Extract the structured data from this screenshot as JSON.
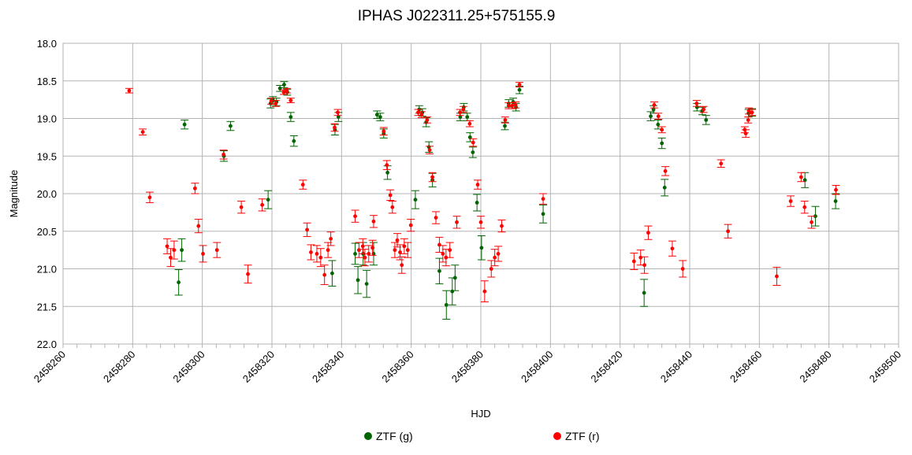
{
  "chart_data": {
    "type": "scatter",
    "title": "IPHAS J022311.25+575155.9",
    "xlabel": "HJD",
    "ylabel": "Magnitude",
    "xlim": [
      2458260,
      2458500
    ],
    "ylim": [
      18.0,
      22.0
    ],
    "y_inverted": true,
    "x_ticks": [
      2458260,
      2458280,
      2458300,
      2458320,
      2458340,
      2458360,
      2458380,
      2458400,
      2458420,
      2458440,
      2458460,
      2458480,
      2458500
    ],
    "y_ticks": [
      "18.0",
      "18.5",
      "19.0",
      "19.5",
      "20.0",
      "20.5",
      "21.0",
      "21.5",
      "22.0"
    ],
    "grid": true,
    "legend_position": "bottom",
    "series": [
      {
        "name": "ZTF (g)",
        "color": "#006400",
        "points": [
          [
            2458293.2,
            21.18,
            0.17
          ],
          [
            2458294.1,
            20.75,
            0.15
          ],
          [
            2458294.9,
            19.08,
            0.06
          ],
          [
            2458306.2,
            19.5,
            0.07
          ],
          [
            2458308.1,
            19.1,
            0.06
          ],
          [
            2458318.9,
            20.08,
            0.12
          ],
          [
            2458319.6,
            18.8,
            0.06
          ],
          [
            2458320.3,
            18.76,
            0.05
          ],
          [
            2458321.3,
            18.78,
            0.05
          ],
          [
            2458322.3,
            18.6,
            0.04
          ],
          [
            2458323.5,
            18.55,
            0.04
          ],
          [
            2458324.4,
            18.65,
            0.04
          ],
          [
            2458325.4,
            18.98,
            0.06
          ],
          [
            2458326.3,
            19.3,
            0.07
          ],
          [
            2458337.3,
            21.06,
            0.17
          ],
          [
            2458338.1,
            19.15,
            0.07
          ],
          [
            2458339.1,
            18.98,
            0.06
          ],
          [
            2458343.9,
            20.8,
            0.14
          ],
          [
            2458344.7,
            21.15,
            0.18
          ],
          [
            2458346.2,
            20.8,
            0.15
          ],
          [
            2458347.2,
            21.2,
            0.18
          ],
          [
            2458349.2,
            20.8,
            0.15
          ],
          [
            2458350.2,
            18.95,
            0.05
          ],
          [
            2458351.1,
            18.98,
            0.05
          ],
          [
            2458352.1,
            19.2,
            0.06
          ],
          [
            2458353.2,
            19.72,
            0.09
          ],
          [
            2458361.2,
            20.08,
            0.12
          ],
          [
            2458362.3,
            18.88,
            0.05
          ],
          [
            2458363.2,
            18.92,
            0.05
          ],
          [
            2458364.3,
            19.05,
            0.06
          ],
          [
            2458365.1,
            19.38,
            0.07
          ],
          [
            2458366.1,
            19.82,
            0.09
          ],
          [
            2458368.1,
            21.03,
            0.17
          ],
          [
            2458370.1,
            21.48,
            0.19
          ],
          [
            2458371.8,
            21.3,
            0.18
          ],
          [
            2458372.6,
            21.12,
            0.17
          ],
          [
            2458374.1,
            18.98,
            0.05
          ],
          [
            2458375.1,
            18.85,
            0.05
          ],
          [
            2458376.1,
            18.98,
            0.05
          ],
          [
            2458376.9,
            19.25,
            0.06
          ],
          [
            2458377.7,
            19.45,
            0.07
          ],
          [
            2458378.9,
            20.12,
            0.11
          ],
          [
            2458380.2,
            20.72,
            0.16
          ],
          [
            2458386.9,
            19.1,
            0.05
          ],
          [
            2458388.0,
            18.8,
            0.05
          ],
          [
            2458389.3,
            18.78,
            0.05
          ],
          [
            2458390.1,
            18.85,
            0.05
          ],
          [
            2458391.1,
            18.62,
            0.05
          ],
          [
            2458397.9,
            20.27,
            0.12
          ],
          [
            2458426.9,
            21.32,
            0.18
          ],
          [
            2458428.8,
            18.97,
            0.06
          ],
          [
            2458429.6,
            18.88,
            0.05
          ],
          [
            2458430.9,
            19.08,
            0.06
          ],
          [
            2458432.0,
            19.33,
            0.07
          ],
          [
            2458432.8,
            19.92,
            0.11
          ],
          [
            2458442.1,
            18.85,
            0.05
          ],
          [
            2458443.6,
            18.9,
            0.05
          ],
          [
            2458444.7,
            19.02,
            0.06
          ],
          [
            2458456.9,
            18.93,
            0.05
          ],
          [
            2458457.9,
            18.92,
            0.05
          ],
          [
            2458473.1,
            19.82,
            0.1
          ],
          [
            2458476.1,
            20.3,
            0.13
          ],
          [
            2458481.9,
            20.1,
            0.1
          ]
        ]
      },
      {
        "name": "ZTF (r)",
        "color": "#ff0000",
        "points": [
          [
            2458279.0,
            18.63,
            0.03
          ],
          [
            2458282.9,
            19.18,
            0.04
          ],
          [
            2458284.9,
            20.05,
            0.07
          ],
          [
            2458289.9,
            20.7,
            0.1
          ],
          [
            2458290.9,
            20.85,
            0.12
          ],
          [
            2458291.9,
            20.75,
            0.12
          ],
          [
            2458297.9,
            19.93,
            0.07
          ],
          [
            2458298.9,
            20.43,
            0.09
          ],
          [
            2458300.2,
            20.8,
            0.11
          ],
          [
            2458304.2,
            20.75,
            0.1
          ],
          [
            2458306.1,
            19.48,
            0.06
          ],
          [
            2458311.2,
            20.18,
            0.08
          ],
          [
            2458313.1,
            21.07,
            0.12
          ],
          [
            2458317.2,
            20.15,
            0.08
          ],
          [
            2458319.8,
            18.77,
            0.04
          ],
          [
            2458321.1,
            18.8,
            0.04
          ],
          [
            2458323.4,
            18.65,
            0.03
          ],
          [
            2458324.3,
            18.63,
            0.03
          ],
          [
            2458325.4,
            18.76,
            0.03
          ],
          [
            2458328.9,
            19.88,
            0.06
          ],
          [
            2458330.1,
            20.48,
            0.09
          ],
          [
            2458331.2,
            20.78,
            0.1
          ],
          [
            2458332.9,
            20.8,
            0.11
          ],
          [
            2458334.0,
            20.85,
            0.12
          ],
          [
            2458335.1,
            21.08,
            0.13
          ],
          [
            2458336.1,
            20.75,
            0.1
          ],
          [
            2458336.9,
            20.6,
            0.09
          ],
          [
            2458338.0,
            19.12,
            0.05
          ],
          [
            2458338.9,
            18.92,
            0.04
          ],
          [
            2458343.9,
            20.3,
            0.08
          ],
          [
            2458345.0,
            20.75,
            0.1
          ],
          [
            2458346.1,
            20.7,
            0.1
          ],
          [
            2458346.7,
            20.85,
            0.11
          ],
          [
            2458347.8,
            20.8,
            0.11
          ],
          [
            2458348.9,
            20.72,
            0.1
          ],
          [
            2458349.2,
            20.37,
            0.08
          ],
          [
            2458352.1,
            19.17,
            0.05
          ],
          [
            2458353.0,
            19.62,
            0.06
          ],
          [
            2458354.0,
            20.02,
            0.07
          ],
          [
            2458354.6,
            20.18,
            0.08
          ],
          [
            2458355.3,
            20.75,
            0.1
          ],
          [
            2458356.0,
            20.62,
            0.09
          ],
          [
            2458356.8,
            20.78,
            0.1
          ],
          [
            2458357.3,
            20.95,
            0.11
          ],
          [
            2458358.0,
            20.7,
            0.1
          ],
          [
            2458359.0,
            20.75,
            0.1
          ],
          [
            2458359.9,
            20.42,
            0.08
          ],
          [
            2458362.0,
            18.92,
            0.04
          ],
          [
            2458363.0,
            18.95,
            0.04
          ],
          [
            2458364.6,
            19.02,
            0.04
          ],
          [
            2458365.3,
            19.42,
            0.05
          ],
          [
            2458366.1,
            19.78,
            0.06
          ],
          [
            2458367.1,
            20.32,
            0.08
          ],
          [
            2458368.1,
            20.68,
            0.1
          ],
          [
            2458369.1,
            20.8,
            0.11
          ],
          [
            2458370.0,
            20.85,
            0.11
          ],
          [
            2458371.1,
            20.75,
            0.1
          ],
          [
            2458373.1,
            20.38,
            0.08
          ],
          [
            2458374.0,
            18.92,
            0.04
          ],
          [
            2458375.0,
            18.88,
            0.04
          ],
          [
            2458376.8,
            19.07,
            0.04
          ],
          [
            2458377.8,
            19.32,
            0.05
          ],
          [
            2458379.1,
            19.88,
            0.06
          ],
          [
            2458380.0,
            20.38,
            0.08
          ],
          [
            2458381.1,
            21.3,
            0.14
          ],
          [
            2458383.0,
            21.0,
            0.11
          ],
          [
            2458384.0,
            20.85,
            0.11
          ],
          [
            2458385.0,
            20.8,
            0.1
          ],
          [
            2458386.0,
            20.43,
            0.08
          ],
          [
            2458387.0,
            19.02,
            0.04
          ],
          [
            2458388.0,
            18.83,
            0.04
          ],
          [
            2458389.0,
            18.83,
            0.04
          ],
          [
            2458390.0,
            18.82,
            0.04
          ],
          [
            2458391.1,
            18.55,
            0.03
          ],
          [
            2458397.9,
            20.07,
            0.07
          ],
          [
            2458424.0,
            20.9,
            0.11
          ],
          [
            2458425.9,
            20.85,
            0.1
          ],
          [
            2458427.0,
            20.95,
            0.11
          ],
          [
            2458428.1,
            20.52,
            0.09
          ],
          [
            2458429.8,
            18.82,
            0.04
          ],
          [
            2458431.0,
            18.97,
            0.04
          ],
          [
            2458432.0,
            19.15,
            0.04
          ],
          [
            2458433.0,
            19.7,
            0.06
          ],
          [
            2458435.0,
            20.73,
            0.1
          ],
          [
            2458438.0,
            21.0,
            0.11
          ],
          [
            2458442.0,
            18.8,
            0.04
          ],
          [
            2458444.0,
            18.88,
            0.04
          ],
          [
            2458449.0,
            19.6,
            0.05
          ],
          [
            2458451.0,
            20.5,
            0.09
          ],
          [
            2458455.8,
            19.15,
            0.04
          ],
          [
            2458456.1,
            19.2,
            0.05
          ],
          [
            2458456.8,
            19.02,
            0.04
          ],
          [
            2458457.0,
            18.9,
            0.04
          ],
          [
            2458457.9,
            18.92,
            0.04
          ],
          [
            2458465.0,
            21.1,
            0.12
          ],
          [
            2458469.0,
            20.1,
            0.07
          ],
          [
            2458472.0,
            19.78,
            0.06
          ],
          [
            2458473.0,
            20.18,
            0.08
          ],
          [
            2458475.0,
            20.38,
            0.08
          ],
          [
            2458482.0,
            19.95,
            0.06
          ]
        ]
      }
    ]
  }
}
